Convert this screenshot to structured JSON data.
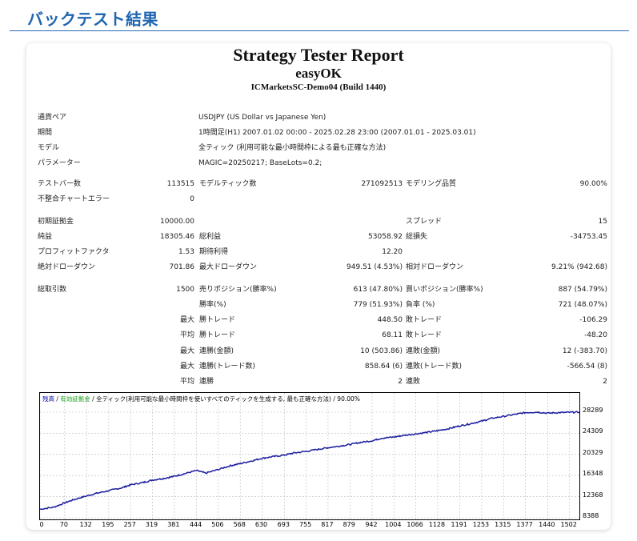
{
  "page": {
    "heading": "バックテスト結果"
  },
  "report": {
    "title": "Strategy Tester Report",
    "ea_name": "easyOK",
    "server": "ICMarketsSC-Demo04 (Build 1440)"
  },
  "info": [
    {
      "label": "通貨ペア",
      "value": "USDJPY (US Dollar vs Japanese Yen)"
    },
    {
      "label": "期間",
      "value": "1時間足(H1) 2007.01.02 00:00 - 2025.02.28 23:00 (2007.01.01 - 2025.03.01)"
    },
    {
      "label": "モデル",
      "value": "全ティック (利用可能な最小時間枠による最も正確な方法)"
    },
    {
      "label": "パラメーター",
      "value": "MAGIC=20250217; BaseLots=0.2;"
    }
  ],
  "stats": {
    "bars_label": "テストバー数",
    "bars_value": "113515",
    "ticks_label": "モデルティック数",
    "ticks_value": "271092513",
    "quality_label": "モデリング品質",
    "quality_value": "90.00%",
    "mismatch_label": "不整合チャートエラー",
    "mismatch_value": "0",
    "deposit_label": "初期証拠金",
    "deposit_value": "10000.00",
    "spread_label": "スプレッド",
    "spread_value": "15",
    "net_label": "純益",
    "net_value": "18305.46",
    "gross_profit_label": "総利益",
    "gross_profit_value": "53058.92",
    "gross_loss_label": "総損失",
    "gross_loss_value": "-34753.45",
    "pf_label": "プロフィットファクタ",
    "pf_value": "1.53",
    "expected_label": "期待利得",
    "expected_value": "12.20",
    "abs_dd_label": "絶対ドローダウン",
    "abs_dd_value": "701.86",
    "max_dd_label": "最大ドローダウン",
    "max_dd_value": "949.51 (4.53%)",
    "rel_dd_label": "相対ドローダウン",
    "rel_dd_value": "9.21% (942.68)",
    "trades_label": "総取引数",
    "trades_value": "1500",
    "short_label": "売りポジション(勝率%)",
    "short_value": "613 (47.80%)",
    "long_label": "買いポジション(勝率%)",
    "long_value": "887 (54.79%)",
    "win_pct_label": "勝率(%)",
    "win_pct_value": "779 (51.93%)",
    "loss_pct_label": "負率 (%)",
    "loss_pct_value": "721 (48.07%)",
    "max_label": "最大",
    "avg_label": "平均",
    "win_trade_label": "勝トレード",
    "loss_trade_label": "敗トレード",
    "max_win_trade": "448.50",
    "max_loss_trade": "-106.29",
    "avg_win_trade": "68.11",
    "avg_loss_trade": "-48.20",
    "consec_win_amt_label": "連勝(金額)",
    "consec_win_amt_value": "10 (503.86)",
    "consec_loss_amt_label": "連敗(金額)",
    "consec_loss_amt_value": "12 (-383.70)",
    "consec_win_cnt_label": "連勝(トレード数)",
    "consec_win_cnt_value": "858.64 (6)",
    "consec_loss_cnt_label": "連敗(トレード数)",
    "consec_loss_cnt_value": "-566.54 (8)",
    "win_streak_label": "連勝",
    "win_streak_value": "2",
    "loss_streak_label": "連敗",
    "loss_streak_value": "2"
  },
  "legend": {
    "balance": "残高",
    "sep1": " / ",
    "equity": "有効証拠金",
    "sep2": " / ",
    "model": "全ティック(利用可能な最小時間枠を使いすべてのティックを生成する, 最も正確な方法)",
    "sep3": " / ",
    "quality": "90.00%"
  },
  "chart_data": {
    "type": "line",
    "title": "",
    "xlabel": "",
    "ylabel": "",
    "x_ticks": [
      0,
      70,
      132,
      195,
      257,
      319,
      381,
      444,
      506,
      568,
      630,
      693,
      755,
      817,
      879,
      942,
      1004,
      1066,
      1128,
      1191,
      1253,
      1315,
      1377,
      1440,
      1502
    ],
    "y_ticks": [
      8388,
      12368,
      16348,
      20329,
      24309,
      28289
    ],
    "xlim": [
      0,
      1530
    ],
    "ylim": [
      8388,
      30400
    ],
    "series": [
      {
        "x": [
          0,
          40,
          70,
          100,
          132,
          160,
          195,
          230,
          257,
          290,
          319,
          350,
          381,
          410,
          444,
          470,
          506,
          540,
          568,
          600,
          630,
          660,
          693,
          720,
          755,
          790,
          817,
          850,
          879,
          910,
          942,
          970,
          1004,
          1030,
          1066,
          1100,
          1128,
          1160,
          1191,
          1220,
          1253,
          1280,
          1315,
          1350,
          1377,
          1410,
          1440,
          1470,
          1502,
          1530
        ],
        "y": [
          10000,
          10400,
          11200,
          11900,
          12500,
          13000,
          13500,
          14000,
          14600,
          15000,
          15500,
          15800,
          16200,
          16700,
          17300,
          16800,
          17500,
          18200,
          18600,
          19100,
          19600,
          19900,
          20200,
          20600,
          20900,
          21300,
          21600,
          21900,
          22200,
          22600,
          22900,
          23400,
          23600,
          23900,
          24200,
          24500,
          24800,
          25200,
          25700,
          26100,
          26600,
          27100,
          27500,
          27900,
          28200,
          28300,
          28100,
          28200,
          28250,
          28300
        ]
      }
    ],
    "grid": true
  }
}
